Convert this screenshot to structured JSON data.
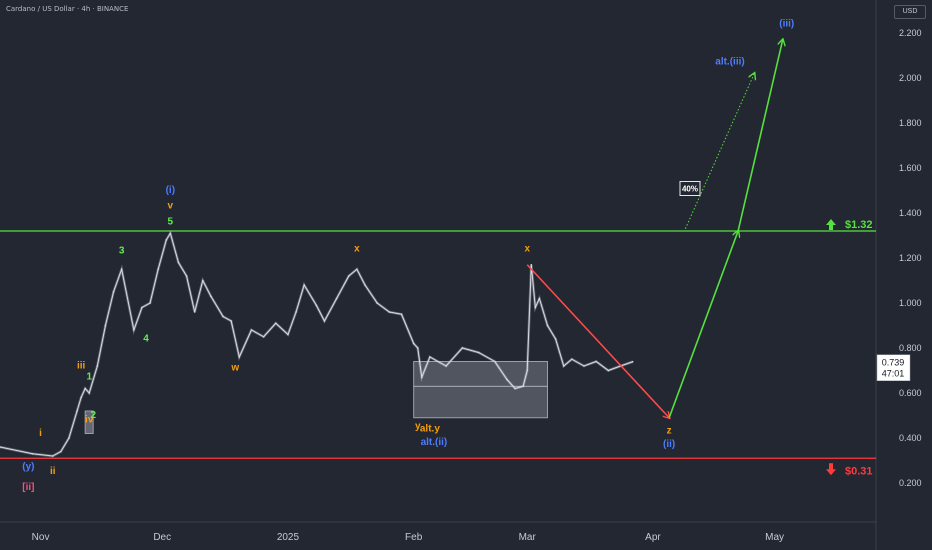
{
  "header": {
    "title": "Cardano / US Dollar · 4h · BINANCE",
    "currency": "USD"
  },
  "price_box": {
    "price": "0.739",
    "countdown": "47:01"
  },
  "levels": {
    "resistance": "$1.32",
    "support": "$0.31"
  },
  "colors": {
    "background": "#232732",
    "candles": "#d8dbe2",
    "resistance": "#55e23c",
    "support": "#ff3b3b",
    "wave_blue": "#4d7cff",
    "wave_orange": "#f59e0b",
    "wave_green": "#5ef04a",
    "wave_pink": "#ff4d7d",
    "box_fill": "#b5b9c2"
  },
  "chart_data": {
    "type": "line",
    "title": "",
    "xlabel": "",
    "ylabel": "",
    "x_ticks": [
      "Nov",
      "Dec",
      "2025",
      "Feb",
      "Mar",
      "Apr",
      "May"
    ],
    "y_ticks": [
      "0.200",
      "0.400",
      "0.600",
      "0.800",
      "1.000",
      "1.200",
      "1.400",
      "1.600",
      "1.800",
      "2.000",
      "2.200"
    ],
    "ylim": [
      0.0,
      2.28
    ],
    "grid": false,
    "series": [
      {
        "x": [
          "2024-10-22",
          "2024-10-30",
          "2024-11-04",
          "2024-11-06",
          "2024-11-08",
          "2024-11-10",
          "2024-11-11",
          "2024-11-12",
          "2024-11-13",
          "2024-11-15",
          "2024-11-17",
          "2024-11-19",
          "2024-11-21",
          "2024-11-24",
          "2024-11-26",
          "2024-11-28",
          "2024-11-30",
          "2024-12-02",
          "2024-12-03",
          "2024-12-05",
          "2024-12-07",
          "2024-12-09",
          "2024-12-11",
          "2024-12-13",
          "2024-12-16",
          "2024-12-18",
          "2024-12-20",
          "2024-12-23",
          "2024-12-26",
          "2024-12-29",
          "2025-01-01",
          "2025-01-03",
          "2025-01-05",
          "2025-01-08",
          "2025-01-10",
          "2025-01-13",
          "2025-01-16",
          "2025-01-18",
          "2025-01-20",
          "2025-01-23",
          "2025-01-26",
          "2025-01-29",
          "2025-02-01",
          "2025-02-02",
          "2025-02-03",
          "2025-02-05",
          "2025-02-09",
          "2025-02-13",
          "2025-02-17",
          "2025-02-21",
          "2025-02-24",
          "2025-02-26",
          "2025-02-28",
          "2025-03-01",
          "2025-03-02",
          "2025-03-03",
          "2025-03-04",
          "2025-03-06",
          "2025-03-08",
          "2025-03-10",
          "2025-03-12",
          "2025-03-15",
          "2025-03-18",
          "2025-03-21",
          "2025-03-24",
          "2025-03-27"
        ],
        "y": [
          0.36,
          0.33,
          0.32,
          0.34,
          0.4,
          0.52,
          0.58,
          0.62,
          0.6,
          0.72,
          0.9,
          1.05,
          1.15,
          0.88,
          0.98,
          1.0,
          1.15,
          1.28,
          1.31,
          1.18,
          1.12,
          0.96,
          1.1,
          1.03,
          0.94,
          0.92,
          0.76,
          0.88,
          0.85,
          0.91,
          0.86,
          0.96,
          1.08,
          0.99,
          0.92,
          1.02,
          1.12,
          1.15,
          1.08,
          1.0,
          0.96,
          0.95,
          0.82,
          0.8,
          0.67,
          0.76,
          0.72,
          0.8,
          0.78,
          0.74,
          0.66,
          0.62,
          0.63,
          0.7,
          1.17,
          0.98,
          1.02,
          0.9,
          0.84,
          0.72,
          0.75,
          0.72,
          0.74,
          0.7,
          0.72,
          0.739
        ]
      }
    ],
    "levels": [
      {
        "label": "$1.32",
        "value": 1.32
      },
      {
        "label": "$0.31",
        "value": 0.31
      }
    ],
    "boxes": [
      {
        "x0": "2025-02-01",
        "x1": "2025-03-06",
        "y_top": 0.74,
        "y_bottom": 0.49,
        "mid": 0.63
      }
    ],
    "projection": {
      "red_arrow": {
        "x0": "2025-03-01",
        "y0": 1.17,
        "x1": "2025-04-05",
        "y1": 0.49
      },
      "main_path": [
        [
          "2025-04-05",
          0.49
        ],
        [
          "2025-04-22",
          1.32
        ],
        [
          "2025-05-03",
          2.17
        ]
      ],
      "alt_path": [
        [
          "2025-04-09",
          1.33
        ],
        [
          "2025-04-26",
          2.02
        ]
      ],
      "probability_label": "40%"
    },
    "wave_labels": [
      {
        "text": "(y)",
        "x": "2024-10-29",
        "y": 0.26,
        "color": "blue"
      },
      {
        "text": "[ii]",
        "x": "2024-10-29",
        "y": 0.17,
        "color": "pink"
      },
      {
        "text": "i",
        "x": "2024-11-01",
        "y": 0.41,
        "color": "orange"
      },
      {
        "text": "ii",
        "x": "2024-11-04",
        "y": 0.24,
        "color": "orange"
      },
      {
        "text": "iii",
        "x": "2024-11-11",
        "y": 0.71,
        "color": "orange"
      },
      {
        "text": "1",
        "x": "2024-11-13",
        "y": 0.66,
        "color": "green"
      },
      {
        "text": "iv",
        "x": "2024-11-13",
        "y": 0.47,
        "color": "orange"
      },
      {
        "text": "2",
        "x": "2024-11-14",
        "y": 0.49,
        "color": "green"
      },
      {
        "text": "3",
        "x": "2024-11-21",
        "y": 1.22,
        "color": "green"
      },
      {
        "text": "4",
        "x": "2024-11-27",
        "y": 0.83,
        "color": "green"
      },
      {
        "text": "(i)",
        "x": "2024-12-03",
        "y": 1.49,
        "color": "blue"
      },
      {
        "text": "v",
        "x": "2024-12-03",
        "y": 1.42,
        "color": "orange"
      },
      {
        "text": "5",
        "x": "2024-12-03",
        "y": 1.35,
        "color": "green"
      },
      {
        "text": "w",
        "x": "2024-12-19",
        "y": 0.7,
        "color": "orange"
      },
      {
        "text": "x",
        "x": "2025-01-18",
        "y": 1.23,
        "color": "orange"
      },
      {
        "text": "y",
        "x": "2025-02-02",
        "y": 0.44,
        "color": "orange"
      },
      {
        "text": "alt.y",
        "x": "2025-02-05",
        "y": 0.43,
        "color": "orange"
      },
      {
        "text": "alt.(ii)",
        "x": "2025-02-06",
        "y": 0.37,
        "color": "blue"
      },
      {
        "text": "x",
        "x": "2025-03-01",
        "y": 1.23,
        "color": "orange"
      },
      {
        "text": "z",
        "x": "2025-04-05",
        "y": 0.42,
        "color": "orange"
      },
      {
        "text": "(ii)",
        "x": "2025-04-05",
        "y": 0.36,
        "color": "blue"
      },
      {
        "text": "alt.(iii)",
        "x": "2025-04-20",
        "y": 2.06,
        "color": "blue"
      },
      {
        "text": "(iii)",
        "x": "2025-05-04",
        "y": 2.23,
        "color": "blue"
      }
    ]
  }
}
